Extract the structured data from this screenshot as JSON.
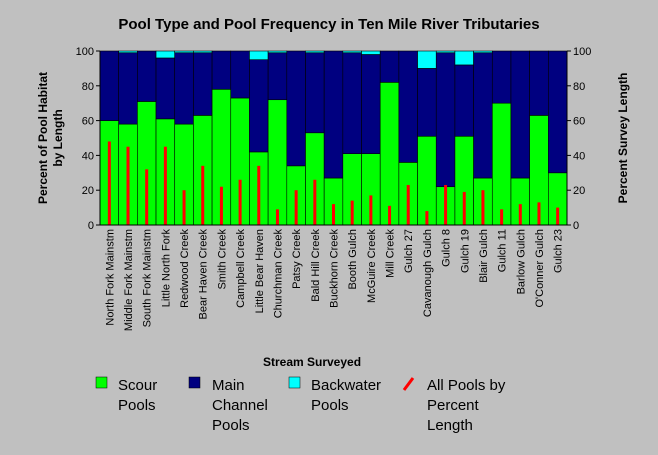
{
  "chart_data": {
    "type": "bar",
    "title": "Pool Type and Pool Frequency in Ten Mile River Tributaries",
    "xlabel": "Stream Surveyed",
    "ylabel_left": [
      "Percent of Pool Habitat",
      "by Length"
    ],
    "ylabel_right": "Percent Survey Length",
    "ylim": [
      0,
      100
    ],
    "yticks": [
      0,
      20,
      40,
      60,
      80,
      100
    ],
    "stacked": true,
    "categories": [
      "North Fork Mainstm",
      "Middle Fork Mainstm",
      "South Fork Mainstm",
      "Little North Fork",
      "Redwood Creek",
      "Bear Haven Creek",
      "Smith Creek",
      "Campbell Creek",
      "Little Bear Haven",
      "Churchman Creek",
      "Patsy Creek",
      "Bald Hill Creek",
      "Buckhorn Creek",
      "Booth Gulch",
      "McGuire Creek",
      "Mill Creek",
      "Gulch 27",
      "Cavanough Gulch",
      "Gulch 8",
      "Gulch 19",
      "Blair Gulch",
      "Gulch 11",
      "Barlow Gulch",
      "O'Conner Gulch",
      "Gulch 23"
    ],
    "series": [
      {
        "name": "Scour Pools",
        "color": "#00ff00",
        "values": [
          60,
          58,
          71,
          61,
          58,
          63,
          78,
          73,
          42,
          72,
          34,
          53,
          27,
          41,
          41,
          82,
          36,
          51,
          22,
          51,
          27,
          70,
          27,
          63,
          30
        ]
      },
      {
        "name": "Main Channel Pools",
        "color": "#000080",
        "values": [
          40,
          41,
          29,
          35,
          41,
          36,
          22,
          27,
          53,
          27,
          66,
          46,
          73,
          58,
          57,
          18,
          64,
          39,
          77,
          41,
          72,
          30,
          73,
          37,
          70
        ]
      },
      {
        "name": "Backwater Pools",
        "color": "#00ffff",
        "values": [
          0,
          1,
          0,
          4,
          1,
          1,
          0,
          0,
          5,
          1,
          0,
          1,
          0,
          1,
          2,
          0,
          0,
          10,
          1,
          8,
          1,
          0,
          0,
          0,
          0
        ]
      }
    ],
    "line_series": {
      "name": "All Pools by Percent Length",
      "color": "#ff0000",
      "values": [
        48,
        45,
        32,
        45,
        20,
        34,
        22,
        26,
        34,
        9,
        20,
        26,
        12,
        14,
        17,
        11,
        23,
        8,
        23,
        19,
        20,
        9,
        12,
        13,
        10
      ]
    },
    "legend_position": "bottom"
  },
  "legend": {
    "scour": [
      "Scour",
      "Pools"
    ],
    "main": [
      "Main",
      "Channel",
      "Pools"
    ],
    "backwater": [
      "Backwater",
      "Pools"
    ],
    "allpools": [
      "All Pools by",
      "Percent",
      "Length"
    ]
  }
}
